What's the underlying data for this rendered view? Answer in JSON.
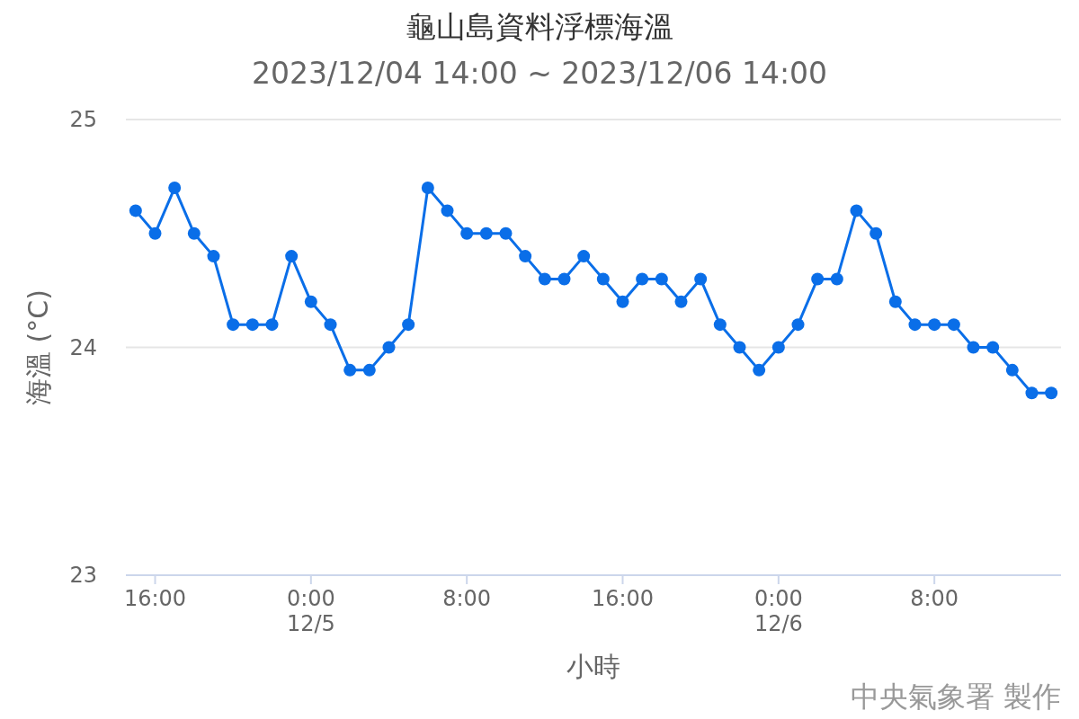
{
  "chart_data": {
    "type": "line",
    "title": "龜山島資料浮標海溫",
    "subtitle": "2023/12/04 14:00 ~ 2023/12/06 14:00",
    "xlabel": "小時",
    "ylabel": "海溫 (°C)",
    "annotations": [
      "中央氣象署 製作"
    ],
    "x": [
      "2023-12-04T15:00",
      "2023-12-04T16:00",
      "2023-12-04T17:00",
      "2023-12-04T18:00",
      "2023-12-04T19:00",
      "2023-12-04T20:00",
      "2023-12-04T21:00",
      "2023-12-04T22:00",
      "2023-12-04T23:00",
      "2023-12-05T00:00",
      "2023-12-05T01:00",
      "2023-12-05T02:00",
      "2023-12-05T03:00",
      "2023-12-05T04:00",
      "2023-12-05T05:00",
      "2023-12-05T06:00",
      "2023-12-05T07:00",
      "2023-12-05T08:00",
      "2023-12-05T09:00",
      "2023-12-05T10:00",
      "2023-12-05T11:00",
      "2023-12-05T12:00",
      "2023-12-05T13:00",
      "2023-12-05T14:00",
      "2023-12-05T15:00",
      "2023-12-05T16:00",
      "2023-12-05T17:00",
      "2023-12-05T18:00",
      "2023-12-05T19:00",
      "2023-12-05T20:00",
      "2023-12-05T21:00",
      "2023-12-05T22:00",
      "2023-12-05T23:00",
      "2023-12-06T00:00",
      "2023-12-06T01:00",
      "2023-12-06T02:00",
      "2023-12-06T03:00",
      "2023-12-06T04:00",
      "2023-12-06T05:00",
      "2023-12-06T06:00",
      "2023-12-06T07:00",
      "2023-12-06T08:00",
      "2023-12-06T09:00",
      "2023-12-06T10:00",
      "2023-12-06T11:00",
      "2023-12-06T12:00",
      "2023-12-06T13:00",
      "2023-12-06T14:00"
    ],
    "values": [
      24.6,
      24.5,
      24.7,
      24.5,
      24.4,
      24.1,
      24.1,
      24.1,
      24.4,
      24.2,
      24.1,
      23.9,
      23.9,
      24.0,
      24.1,
      24.7,
      24.6,
      24.5,
      24.5,
      24.5,
      24.4,
      24.3,
      24.3,
      24.4,
      24.3,
      24.2,
      24.3,
      24.3,
      24.2,
      24.3,
      24.1,
      24.0,
      23.9,
      24.0,
      24.1,
      24.3,
      24.3,
      24.6,
      24.5,
      24.2,
      24.1,
      24.1,
      24.1,
      24.0,
      24.0,
      23.9,
      23.8,
      23.8
    ],
    "color": "#0a6ee8",
    "marker": "circle",
    "line_style": "solid",
    "grid": "y",
    "xlim": [
      "2023-12-04T14:30",
      "2023-12-06T14:30"
    ],
    "xticks": [
      {
        "value": "2023-12-04T16:00",
        "label": "16:00"
      },
      {
        "value": "2023-12-05T00:00",
        "label": "0:00\n12/5"
      },
      {
        "value": "2023-12-05T08:00",
        "label": "8:00"
      },
      {
        "value": "2023-12-05T16:00",
        "label": "16:00"
      },
      {
        "value": "2023-12-06T00:00",
        "label": "0:00\n12/6"
      },
      {
        "value": "2023-12-06T08:00",
        "label": "8:00"
      }
    ],
    "ylim": [
      23,
      25
    ],
    "yticks": [
      23,
      24,
      25
    ]
  }
}
